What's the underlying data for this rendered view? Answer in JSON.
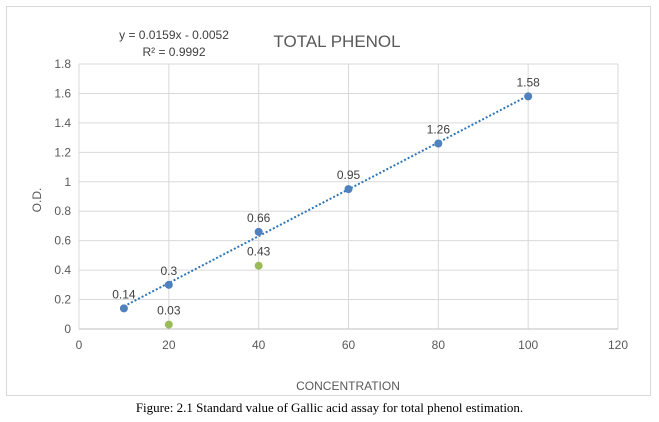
{
  "chart_data": {
    "type": "scatter",
    "title": "TOTAL PHENOL",
    "xlabel": "CONCENTRATION",
    "ylabel": "O.D.",
    "xlim": [
      0,
      120
    ],
    "ylim": [
      0,
      1.8
    ],
    "x_ticks": [
      "0",
      "20",
      "40",
      "60",
      "80",
      "100",
      "120"
    ],
    "y_ticks": [
      "0",
      "0.2",
      "0.4",
      "0.6",
      "0.8",
      "1",
      "1.2",
      "1.4",
      "1.6",
      "1.8"
    ],
    "grid": true,
    "series": [
      {
        "color": "#4f81bd",
        "points": [
          {
            "x": 10,
            "y": 0.14,
            "label": "0.14"
          },
          {
            "x": 20,
            "y": 0.3,
            "label": "0.3"
          },
          {
            "x": 40,
            "y": 0.66,
            "label": "0.66"
          },
          {
            "x": 60,
            "y": 0.95,
            "label": "0.95"
          },
          {
            "x": 80,
            "y": 1.26,
            "label": "1.26"
          },
          {
            "x": 100,
            "y": 1.58,
            "label": "1.58"
          }
        ],
        "trendline": {
          "slope": 0.0159,
          "intercept": -0.0052,
          "equation": "y = 0.0159x - 0.0052",
          "r_squared": "R² = 0.9992",
          "color": "#2e75b6"
        }
      },
      {
        "color": "#9bbb59",
        "points": [
          {
            "x": 20,
            "y": 0.03,
            "label": "0.03"
          },
          {
            "x": 40,
            "y": 0.43,
            "label": "0.43"
          }
        ]
      }
    ]
  },
  "caption": "Figure: 2.1 Standard value of Gallic acid assay for total phenol estimation."
}
